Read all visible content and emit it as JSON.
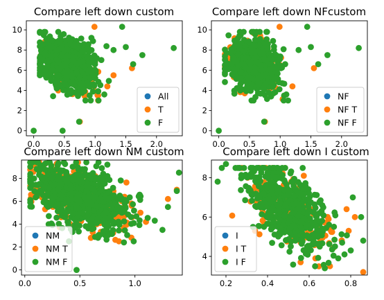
{
  "chart_data": [
    {
      "type": "scatter",
      "title": "Compare left down custom",
      "xlim": [
        -0.12,
        2.42
      ],
      "ylim": [
        -0.5,
        10.9
      ],
      "xticks": [
        0.0,
        0.5,
        1.0,
        1.5,
        2.0
      ],
      "xtick_labels": [
        "0.0",
        "0.5",
        "1.0",
        "1.5",
        "2.0"
      ],
      "yticks": [
        0,
        2,
        4,
        6,
        8,
        10
      ],
      "ytick_labels": [
        "0",
        "2",
        "4",
        "6",
        "8",
        "10"
      ],
      "legend_position": "lower-right",
      "cloud": {
        "x_center": 0.55,
        "x_spread": 0.22,
        "y_center": 6.6,
        "y_spread": 1.3,
        "x_min": 0.1,
        "x_max": 1.3,
        "y_min": 3.0,
        "y_max": 9.8,
        "slope": -2.0
      },
      "series": [
        {
          "name": "All",
          "color": "#1f77b4",
          "count": 0,
          "extra_points": []
        },
        {
          "name": "T",
          "color": "#ff7f0e",
          "count": 130,
          "extra_points": [
            [
              0.99,
              10.3
            ],
            [
              0.75,
              0.9
            ],
            [
              1.05,
              3.0
            ],
            [
              1.2,
              4.4
            ],
            [
              1.6,
              6.2
            ],
            [
              0.4,
              4.0
            ],
            [
              1.3,
              5.5
            ]
          ]
        },
        {
          "name": "F",
          "color": "#2ca02c",
          "count": 650,
          "extra_points": [
            [
              0.0,
              0.0
            ],
            [
              0.47,
              0.0
            ],
            [
              1.44,
              10.3
            ],
            [
              2.28,
              8.2
            ],
            [
              1.77,
              7.5
            ],
            [
              1.5,
              8.3
            ],
            [
              1.62,
              6.6
            ],
            [
              1.3,
              8.0
            ],
            [
              0.74,
              0.9
            ],
            [
              1.15,
              3.6
            ]
          ]
        }
      ]
    },
    {
      "type": "scatter",
      "title": "Compare left down NFcustom",
      "xlim": [
        -0.12,
        2.42
      ],
      "ylim": [
        -0.5,
        10.9
      ],
      "xticks": [
        0.0,
        0.5,
        1.0,
        1.5,
        2.0
      ],
      "xtick_labels": [
        "0.0",
        "0.5",
        "1.0",
        "1.5",
        "2.0"
      ],
      "yticks": [
        0,
        2,
        4,
        6,
        8,
        10
      ],
      "ytick_labels": [
        "0",
        "2",
        "4",
        "6",
        "8",
        "10"
      ],
      "legend_position": "lower-right",
      "cloud": {
        "x_center": 0.55,
        "x_spread": 0.22,
        "y_center": 6.6,
        "y_spread": 1.3,
        "x_min": 0.1,
        "x_max": 1.3,
        "y_min": 3.0,
        "y_max": 9.8,
        "slope": -2.0
      },
      "series": [
        {
          "name": "NF",
          "color": "#1f77b4",
          "count": 0,
          "extra_points": []
        },
        {
          "name": "NF T",
          "color": "#ff7f0e",
          "count": 120,
          "extra_points": [
            [
              0.99,
              10.3
            ],
            [
              0.75,
              0.9
            ],
            [
              1.2,
              4.4
            ],
            [
              1.55,
              6.2
            ]
          ]
        },
        {
          "name": "NF F",
          "color": "#2ca02c",
          "count": 640,
          "extra_points": [
            [
              0.0,
              0.0
            ],
            [
              1.44,
              10.3
            ],
            [
              2.28,
              8.2
            ],
            [
              1.77,
              7.5
            ],
            [
              1.5,
              8.3
            ],
            [
              1.62,
              6.6
            ],
            [
              1.3,
              8.0
            ],
            [
              0.74,
              0.9
            ],
            [
              1.1,
              3.6
            ]
          ]
        }
      ]
    },
    {
      "type": "scatter",
      "title": "Compare left down NM custom",
      "xlim": [
        -0.03,
        1.43
      ],
      "ylim": [
        -0.45,
        9.6
      ],
      "xticks": [
        0.0,
        0.5,
        1.0
      ],
      "xtick_labels": [
        "0.0",
        "0.5",
        "1.0"
      ],
      "yticks": [
        0,
        2,
        4,
        6,
        8
      ],
      "ytick_labels": [
        "0",
        "2",
        "4",
        "6",
        "8"
      ],
      "legend_position": "lower-left",
      "cloud": {
        "x_center": 0.5,
        "x_spread": 0.22,
        "y_center": 6.4,
        "y_spread": 1.3,
        "x_min": 0.05,
        "x_max": 1.25,
        "y_min": 2.5,
        "y_max": 9.4,
        "slope": -3.5
      },
      "series": [
        {
          "name": "NM",
          "color": "#1f77b4",
          "count": 0,
          "extra_points": []
        },
        {
          "name": "NM T",
          "color": "#ff7f0e",
          "count": 220,
          "extra_points": [
            [
              0.97,
              5.8
            ],
            [
              1.05,
              5.0
            ],
            [
              1.3,
              6.2
            ],
            [
              1.1,
              4.2
            ],
            [
              0.6,
              2.8
            ],
            [
              0.9,
              3.5
            ],
            [
              1.38,
              7.0
            ]
          ]
        },
        {
          "name": "NM F",
          "color": "#2ca02c",
          "count": 700,
          "extra_points": [
            [
              0.47,
              0.0
            ],
            [
              1.4,
              8.5
            ],
            [
              1.38,
              6.9
            ],
            [
              1.25,
              3.5
            ],
            [
              1.3,
              5.5
            ],
            [
              0.75,
              9.2
            ],
            [
              1.18,
              4.3
            ],
            [
              0.9,
              2.4
            ]
          ]
        }
      ]
    },
    {
      "type": "scatter",
      "title": "Compare left down I custom",
      "xlim": [
        0.13,
        0.88
      ],
      "ylim": [
        3.05,
        8.9
      ],
      "xticks": [
        0.2,
        0.4,
        0.6,
        0.8
      ],
      "xtick_labels": [
        "0.2",
        "0.4",
        "0.6",
        "0.8"
      ],
      "yticks": [
        4,
        6,
        8
      ],
      "ytick_labels": [
        "4",
        "6",
        "8"
      ],
      "legend_position": "lower-left",
      "cloud": {
        "x_center": 0.5,
        "x_spread": 0.1,
        "y_center": 6.4,
        "y_spread": 0.85,
        "x_min": 0.18,
        "x_max": 0.84,
        "y_min": 3.4,
        "y_max": 8.5,
        "slope": -8.0
      },
      "series": [
        {
          "name": "I",
          "color": "#1f77b4",
          "count": 0,
          "extra_points": []
        },
        {
          "name": "I T",
          "color": "#ff7f0e",
          "count": 160,
          "extra_points": [
            [
              0.86,
              3.2
            ],
            [
              0.79,
              5.3
            ],
            [
              0.82,
              6.0
            ],
            [
              0.7,
              3.5
            ],
            [
              0.63,
              3.9
            ],
            [
              0.78,
              6.4
            ],
            [
              0.34,
              5.3
            ]
          ]
        },
        {
          "name": "I F",
          "color": "#2ca02c",
          "count": 560,
          "extra_points": [
            [
              0.16,
              7.8
            ],
            [
              0.18,
              8.5
            ],
            [
              0.2,
              8.7
            ],
            [
              0.85,
              6.0
            ],
            [
              0.81,
              7.0
            ],
            [
              0.8,
              4.3
            ],
            [
              0.77,
              4.1
            ],
            [
              0.74,
              3.9
            ],
            [
              0.86,
              4.8
            ],
            [
              0.33,
              5.5
            ]
          ]
        }
      ]
    }
  ]
}
